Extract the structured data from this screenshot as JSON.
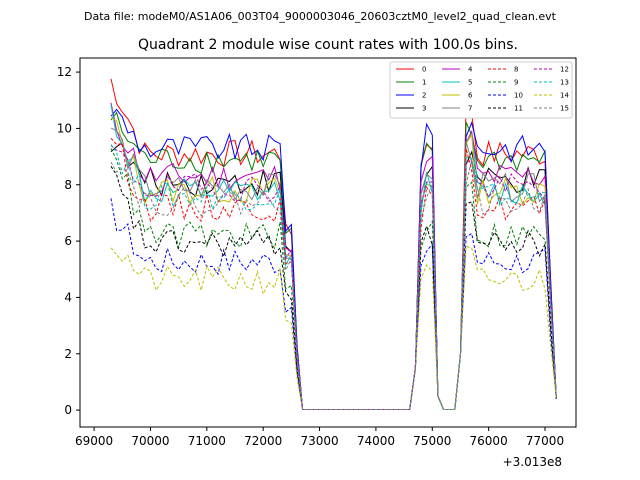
{
  "chart_data": {
    "type": "line",
    "suptitle": "Data file: modeM0/AS1A06_003T04_9000003046_20603cztM0_level2_quad_clean.evt",
    "title": "Quadrant 2 module wise count rates with 100.0s bins.",
    "xlabel": "",
    "ylabel": "",
    "x_offset_label": "+3.013e8",
    "xlim": [
      68750,
      77550
    ],
    "ylim": [
      -0.6,
      12.5
    ],
    "xticks": [
      69000,
      70000,
      71000,
      72000,
      73000,
      74000,
      75000,
      76000,
      77000
    ],
    "xtick_labels": [
      "69000",
      "70000",
      "71000",
      "72000",
      "73000",
      "74000",
      "75000",
      "76000",
      "77000"
    ],
    "yticks": [
      0,
      2,
      4,
      6,
      8,
      10,
      12
    ],
    "ytick_labels": [
      "0",
      "2",
      "4",
      "6",
      "8",
      "10",
      "12"
    ],
    "legend_position": "top-right",
    "legend_columns": 4,
    "segments": [
      {
        "start": 69300,
        "end": 72500
      },
      {
        "start": 74800,
        "end": 75000
      },
      {
        "start": 75600,
        "end": 77000
      }
    ],
    "series": [
      {
        "name": "0",
        "color": "#ff0000",
        "dash": "solid",
        "start": 11.7,
        "mean": 9.1
      },
      {
        "name": "1",
        "color": "#008000",
        "dash": "solid",
        "start": 10.4,
        "mean": 8.9
      },
      {
        "name": "2",
        "color": "#0000ff",
        "dash": "solid",
        "start": 10.7,
        "mean": 9.3
      },
      {
        "name": "3",
        "color": "#000000",
        "dash": "solid",
        "start": 9.6,
        "mean": 8.1
      },
      {
        "name": "4",
        "color": "#bf00bf",
        "dash": "solid",
        "start": 10.5,
        "mean": 8.3
      },
      {
        "name": "5",
        "color": "#00bfbf",
        "dash": "solid",
        "start": 10.6,
        "mean": 7.7
      },
      {
        "name": "6",
        "color": "#bfbf00",
        "dash": "solid",
        "start": 10.3,
        "mean": 7.8
      },
      {
        "name": "7",
        "color": "#808080",
        "dash": "solid",
        "start": 10.1,
        "mean": 7.9
      },
      {
        "name": "8",
        "color": "#ff0000",
        "dash": "dashed",
        "start": 9.9,
        "mean": 7.2
      },
      {
        "name": "9",
        "color": "#008000",
        "dash": "dashed",
        "start": 9.7,
        "mean": 6.2
      },
      {
        "name": "10",
        "color": "#0000ff",
        "dash": "dashed",
        "start": 7.1,
        "mean": 5.3
      },
      {
        "name": "11",
        "color": "#000000",
        "dash": "dashed",
        "start": 8.4,
        "mean": 5.9
      },
      {
        "name": "12",
        "color": "#bf00bf",
        "dash": "dashed",
        "start": 9.3,
        "mean": 7.9
      },
      {
        "name": "13",
        "color": "#00bfbf",
        "dash": "dashed",
        "start": 9.5,
        "mean": 7.6
      },
      {
        "name": "14",
        "color": "#bfbf00",
        "dash": "dashed",
        "start": 6.0,
        "mean": 4.6
      },
      {
        "name": "15",
        "color": "#808080",
        "dash": "dashed",
        "start": 9.2,
        "mean": 7.4
      }
    ]
  }
}
